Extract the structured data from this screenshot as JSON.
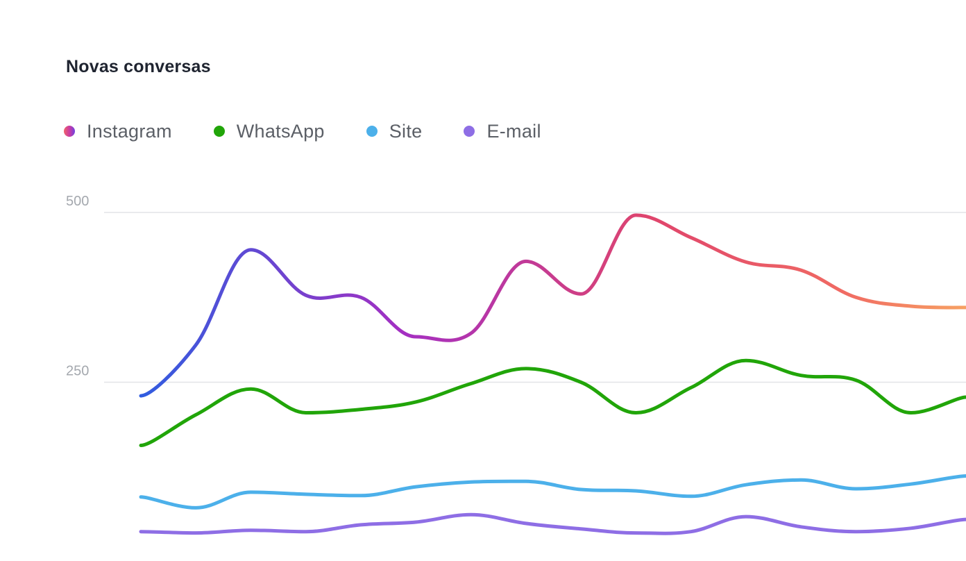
{
  "chart_data": {
    "type": "line",
    "title": "Novas conversas",
    "xlabel": "",
    "ylabel": "",
    "ylim": [
      0,
      500
    ],
    "yticks": [
      250,
      500
    ],
    "grid": true,
    "legend_position": "top-left",
    "x": [
      1,
      2,
      3,
      4,
      5,
      6,
      7,
      8,
      9,
      10,
      11,
      12,
      13,
      14,
      15,
      16
    ],
    "series": [
      {
        "name": "Instagram",
        "color": "#e0456c",
        "gradient": [
          "#2f5de0",
          "#a42fc2",
          "#e04f6e",
          "#f7a163"
        ],
        "values": [
          230,
          305,
          445,
          378,
          375,
          317,
          322,
          428,
          380,
          496,
          463,
          427,
          415,
          375,
          362,
          360
        ]
      },
      {
        "name": "WhatsApp",
        "color": "#21a509",
        "values": [
          157,
          202,
          240,
          205,
          210,
          221,
          248,
          270,
          250,
          205,
          242,
          282,
          260,
          253,
          205,
          228
        ]
      },
      {
        "name": "Site",
        "color": "#4cb0ea",
        "values": [
          81,
          65,
          88,
          85,
          83,
          96,
          103,
          104,
          92,
          90,
          82,
          99,
          106,
          93,
          100,
          112
        ]
      },
      {
        "name": "E-mail",
        "color": "#8e6ee5",
        "values": [
          30,
          28,
          32,
          30,
          40,
          44,
          55,
          42,
          34,
          28,
          30,
          52,
          37,
          30,
          35,
          48
        ]
      }
    ]
  }
}
